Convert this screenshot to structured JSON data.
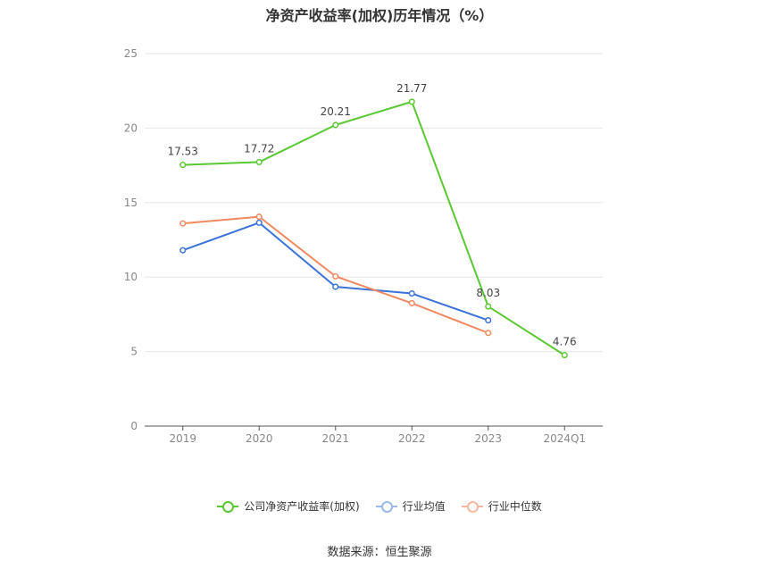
{
  "title": "净资产收益率(加权)历年情况（%）",
  "source": "数据来源：恒生聚源",
  "chart_data": {
    "type": "line",
    "categories": [
      "2019",
      "2020",
      "2021",
      "2022",
      "2023",
      "2024Q1"
    ],
    "ylim": [
      0,
      25
    ],
    "yticks": [
      0,
      5,
      10,
      15,
      20,
      25
    ],
    "grid": true,
    "legend_position": "bottom",
    "series": [
      {
        "name": "公司净资产收益率(加权)",
        "color": "#5ac832",
        "values": [
          17.53,
          17.72,
          20.21,
          21.77,
          8.03,
          4.76
        ],
        "labels": [
          "17.53",
          "17.72",
          "20.21",
          "21.77",
          "8.03",
          "4.76"
        ]
      },
      {
        "name": "行业均值",
        "color": "#3a72d8",
        "values": [
          11.8,
          13.65,
          9.35,
          8.9,
          7.1,
          null
        ]
      },
      {
        "name": "行业中位数",
        "color": "#f08860",
        "values": [
          13.6,
          14.05,
          10.05,
          8.25,
          6.25,
          null
        ]
      }
    ]
  }
}
